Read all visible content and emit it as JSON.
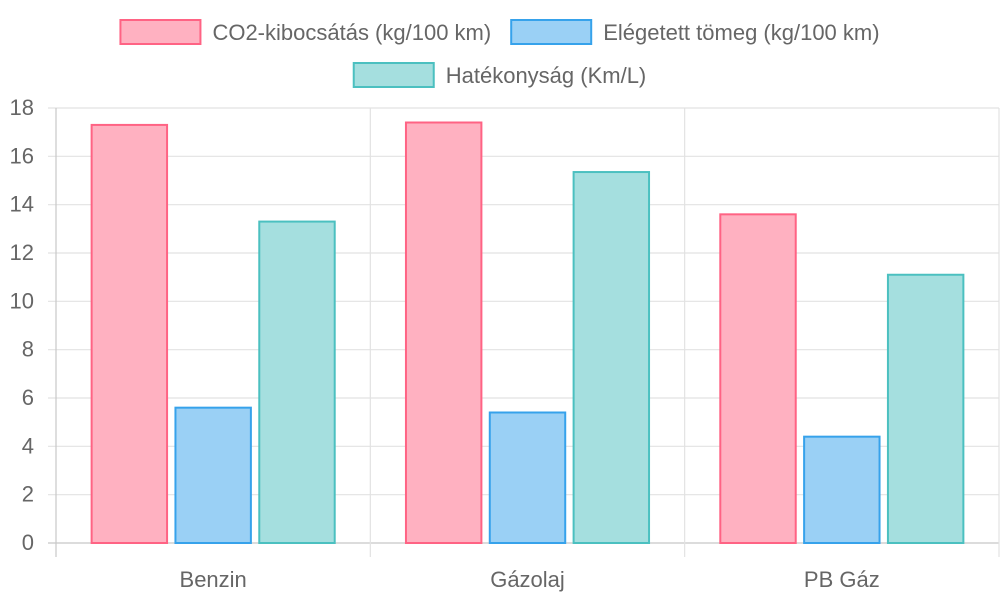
{
  "chart_data": {
    "type": "bar",
    "categories": [
      "Benzin",
      "Gázolaj",
      "PB Gáz"
    ],
    "series": [
      {
        "name": "CO2-kibocsátás (kg/100 km)",
        "values": [
          17.3,
          17.4,
          13.6
        ],
        "fill": "#ffb1c1",
        "stroke": "#ff6384"
      },
      {
        "name": "Elégetett tömeg (kg/100 km)",
        "values": [
          5.6,
          5.4,
          4.4
        ],
        "fill": "#9ad0f5",
        "stroke": "#36a2eb"
      },
      {
        "name": "Hatékonyság (Km/L)",
        "values": [
          13.3,
          15.35,
          11.1
        ],
        "fill": "#a5dfdf",
        "stroke": "#4bc0c0"
      }
    ],
    "ylim": [
      0,
      18
    ],
    "yticks": [
      0,
      2,
      4,
      6,
      8,
      10,
      12,
      14,
      16,
      18
    ],
    "grid": true,
    "legend_position": "top"
  }
}
